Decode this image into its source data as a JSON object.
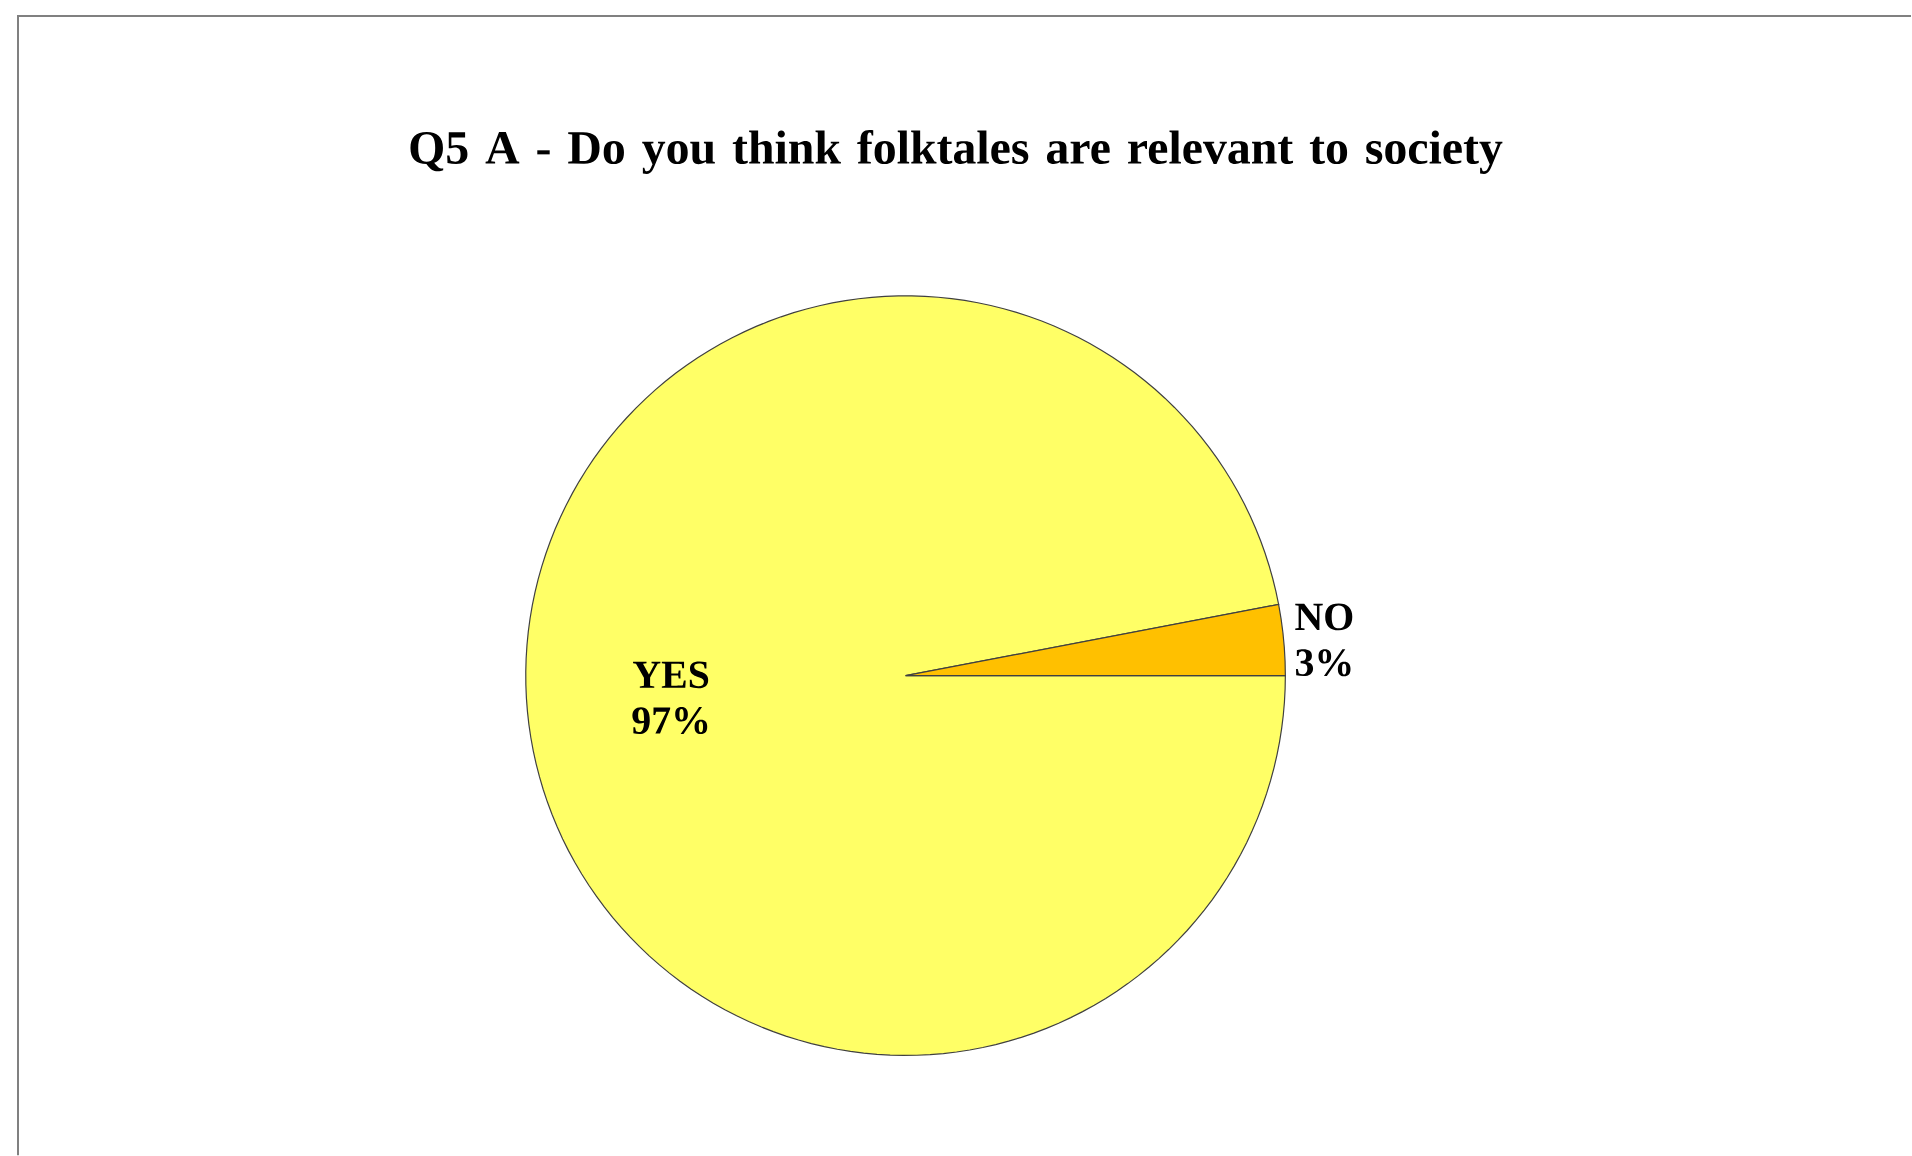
{
  "chart_data": {
    "type": "pie",
    "title": "Q5 A - Do you think folktales are relevant to society",
    "categories": [
      "YES",
      "NO"
    ],
    "values": [
      97,
      3
    ],
    "colors": [
      "#ffff66",
      "#ffc000"
    ],
    "value_labels": [
      "97%",
      "3%"
    ]
  }
}
